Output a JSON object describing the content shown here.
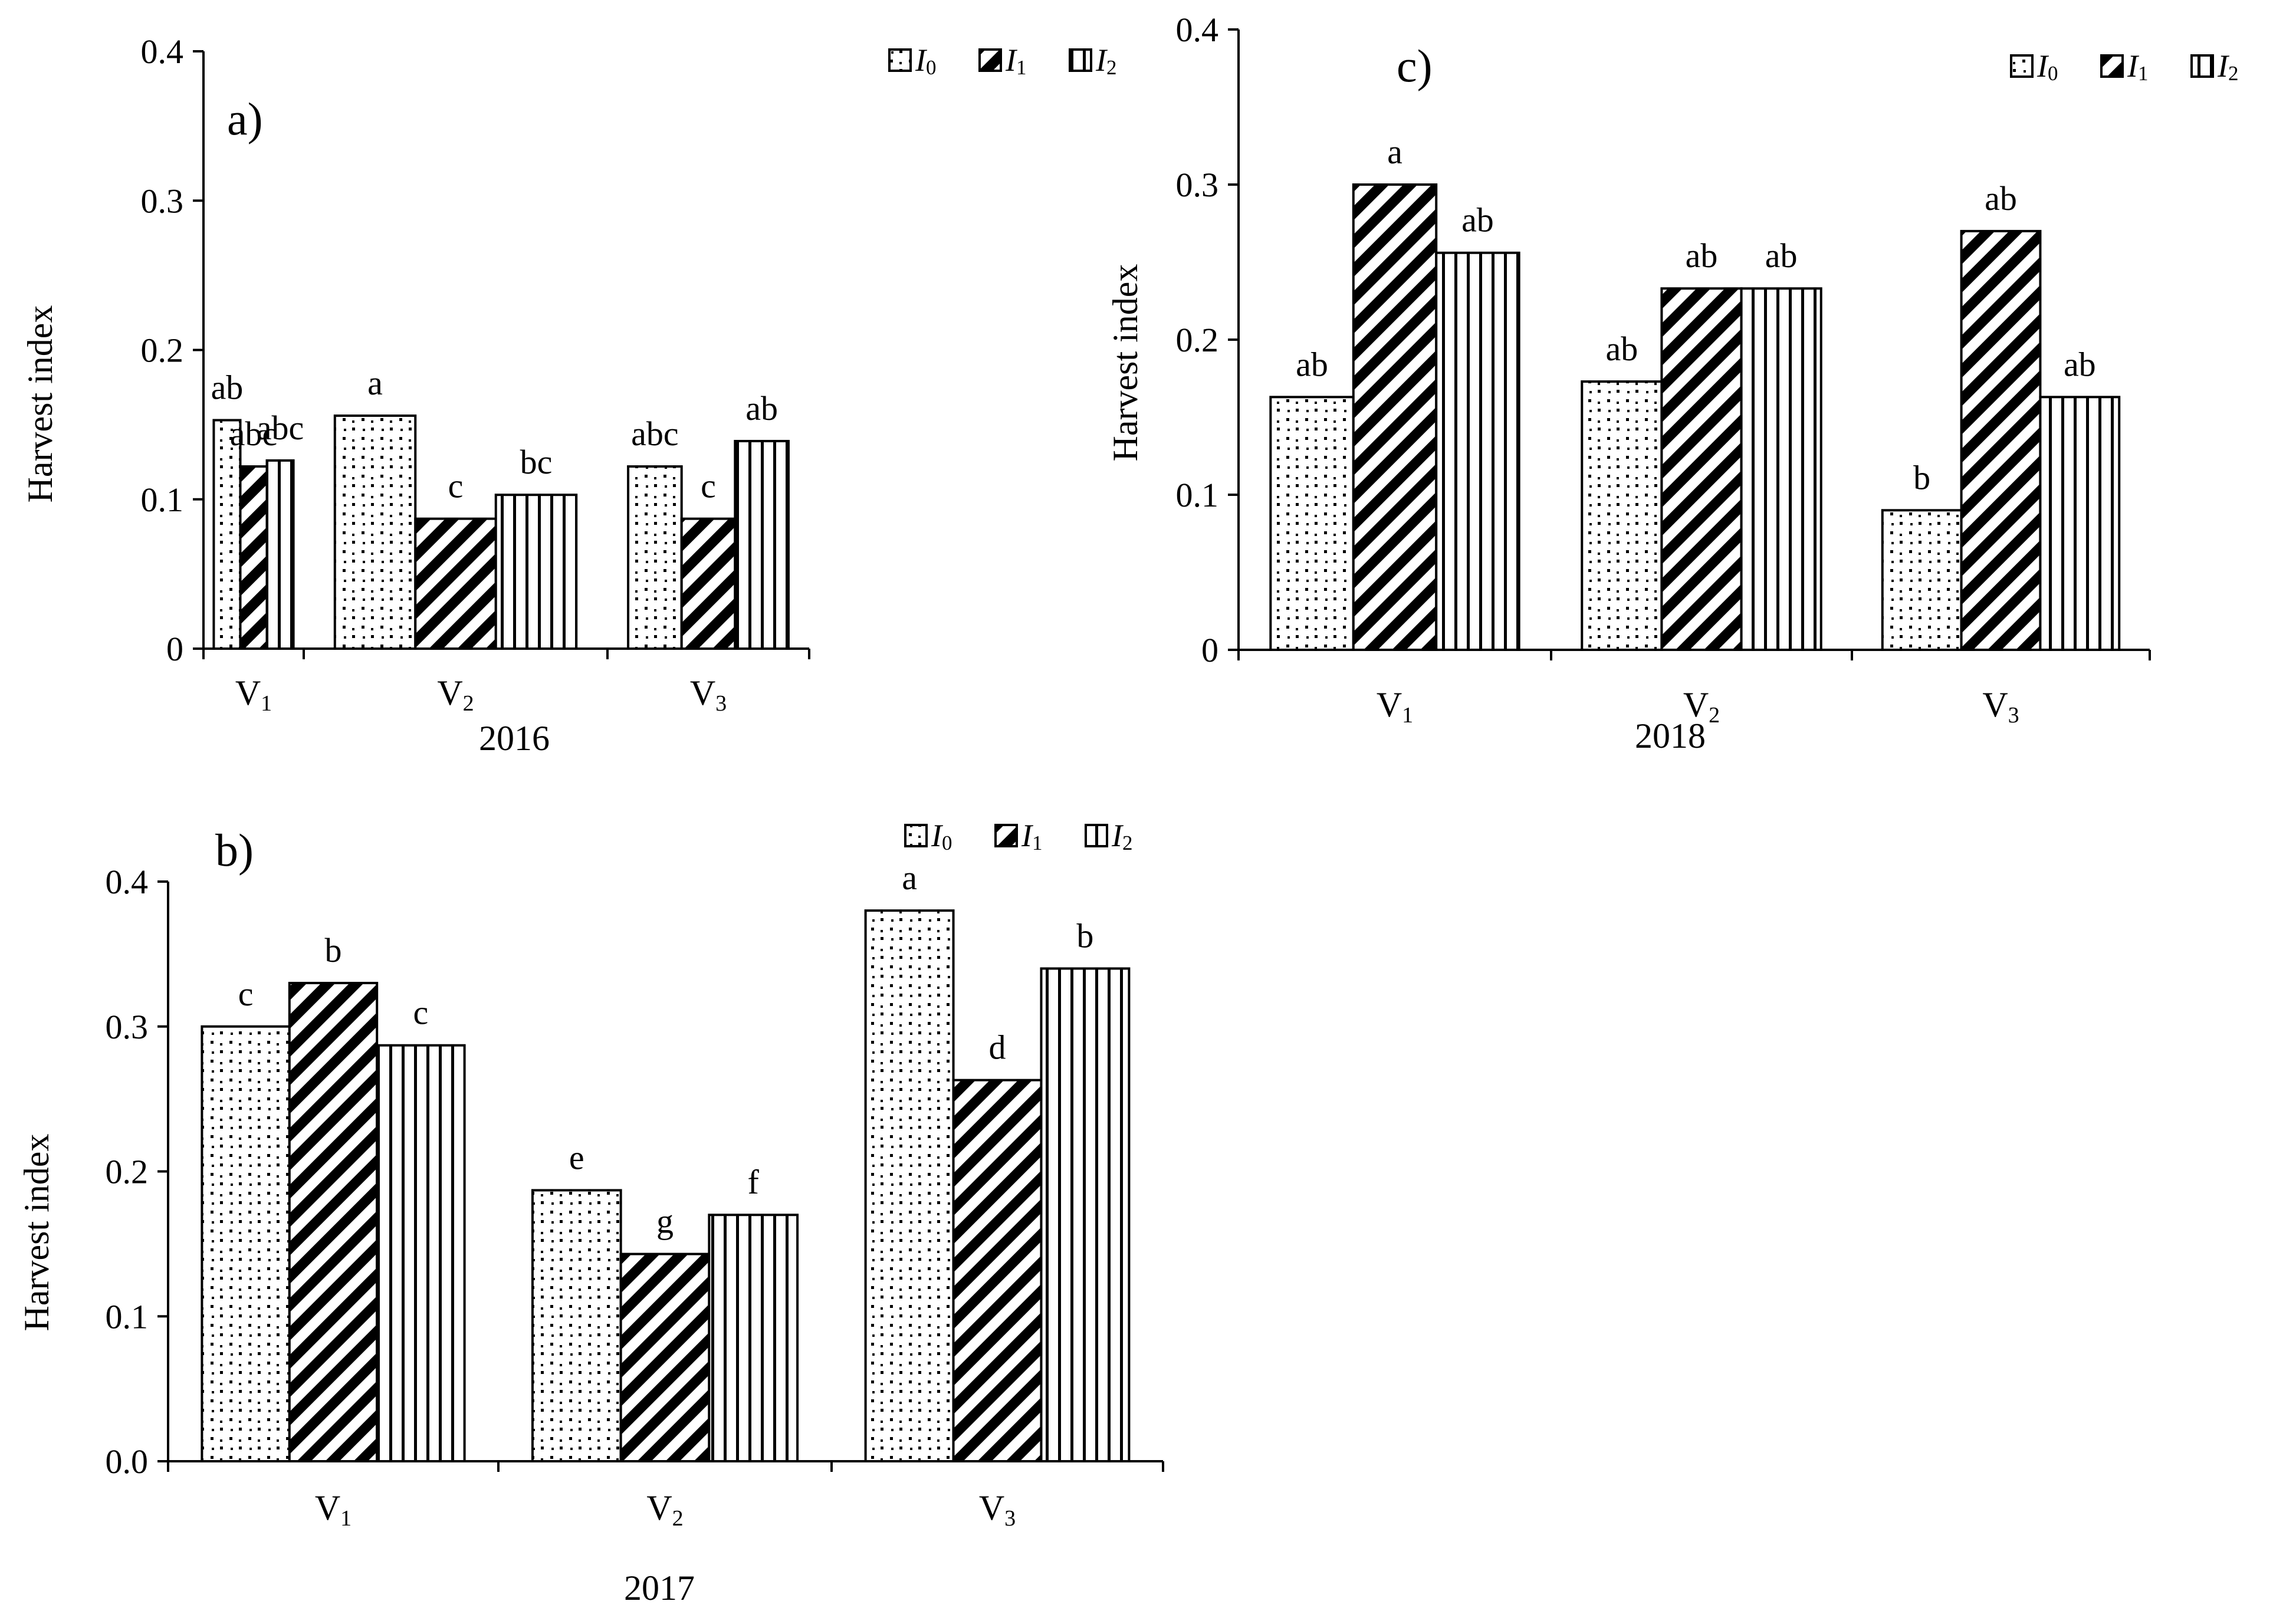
{
  "figure": {
    "series_legend": [
      {
        "name": "I",
        "sub": "0",
        "pattern": "dots"
      },
      {
        "name": "I",
        "sub": "1",
        "pattern": "diag"
      },
      {
        "name": "I",
        "sub": "2",
        "pattern": "vert"
      }
    ]
  },
  "chart_data": [
    {
      "id": "a",
      "type": "bar",
      "panel_label": "a)",
      "xlabel": "2016",
      "ylabel": "Harvest index",
      "ylim": [
        0,
        0.4
      ],
      "ytick_labels": [
        "0",
        "0.1",
        "0.2",
        "0.3",
        "0.4"
      ],
      "categories": [
        {
          "main": "V",
          "sub": "1"
        },
        {
          "main": "V",
          "sub": "2"
        },
        {
          "main": "V",
          "sub": "3"
        }
      ],
      "series": [
        {
          "name": "I0",
          "values": [
            0.153,
            0.156,
            0.122
          ],
          "letters": [
            "ab",
            "a",
            "abc"
          ]
        },
        {
          "name": "I1",
          "values": [
            0.122,
            0.087,
            0.087
          ],
          "letters": [
            "abc",
            "c",
            "c"
          ]
        },
        {
          "name": "I2",
          "values": [
            0.126,
            0.103,
            0.139
          ],
          "letters": [
            "abc",
            "bc",
            "ab"
          ]
        }
      ]
    },
    {
      "id": "b",
      "type": "bar",
      "panel_label": "b)",
      "xlabel": "2017",
      "ylabel": "Harvest index",
      "ylim": [
        0,
        0.4
      ],
      "ytick_labels": [
        "0.0",
        "0.1",
        "0.2",
        "0.3",
        "0.4"
      ],
      "categories": [
        {
          "main": "V",
          "sub": "1"
        },
        {
          "main": "V",
          "sub": "2"
        },
        {
          "main": "V",
          "sub": "3"
        }
      ],
      "series": [
        {
          "name": "I0",
          "values": [
            0.3,
            0.187,
            0.38
          ],
          "letters": [
            "c",
            "e",
            "a"
          ]
        },
        {
          "name": "I1",
          "values": [
            0.33,
            0.143,
            0.263
          ],
          "letters": [
            "b",
            "g",
            "d"
          ]
        },
        {
          "name": "I2",
          "values": [
            0.287,
            0.17,
            0.34
          ],
          "letters": [
            "c",
            "f",
            "b"
          ]
        }
      ]
    },
    {
      "id": "c",
      "type": "bar",
      "panel_label": "c)",
      "xlabel": "2018",
      "ylabel": "Harvest index",
      "ylim": [
        0,
        0.4
      ],
      "ytick_labels": [
        "0",
        "0.1",
        "0.2",
        "0.3",
        "0.4"
      ],
      "categories": [
        {
          "main": "V",
          "sub": "1"
        },
        {
          "main": "V",
          "sub": "2"
        },
        {
          "main": "V",
          "sub": "3"
        }
      ],
      "series": [
        {
          "name": "I0",
          "values": [
            0.163,
            0.173,
            0.09
          ],
          "letters": [
            "ab",
            "ab",
            "b"
          ]
        },
        {
          "name": "I1",
          "values": [
            0.3,
            0.233,
            0.27
          ],
          "letters": [
            "a",
            "ab",
            "ab"
          ]
        },
        {
          "name": "I2",
          "values": [
            0.256,
            0.233,
            0.163
          ],
          "letters": [
            "ab",
            "ab",
            "ab"
          ]
        }
      ]
    }
  ]
}
